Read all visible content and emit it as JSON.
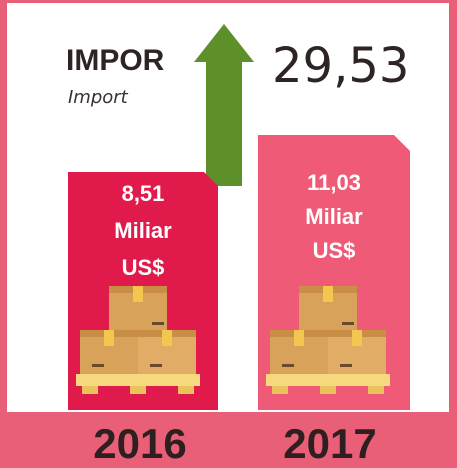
{
  "header": {
    "title": "IMPOR",
    "subtitle": "Import"
  },
  "growth": "29,53",
  "items": [
    {
      "value": "8,51",
      "unit": "Miliar",
      "currency": "US$",
      "year": "2016"
    },
    {
      "value": "11,03",
      "unit": "Miliar",
      "currency": "US$",
      "year": "2017"
    }
  ]
}
